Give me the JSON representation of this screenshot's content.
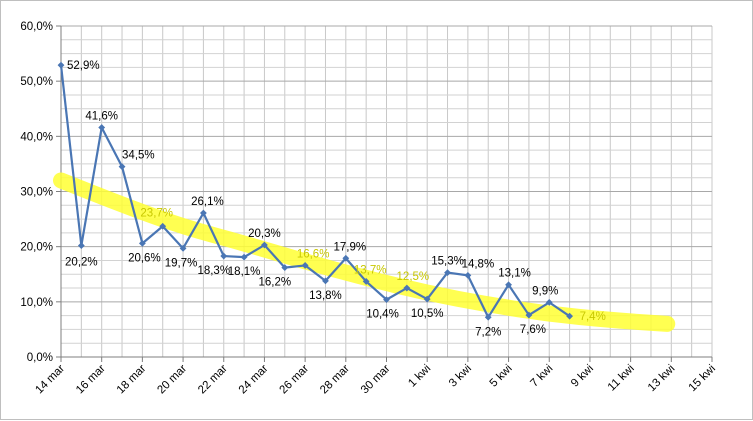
{
  "chart_data": {
    "type": "line",
    "title": "",
    "xlabel": "",
    "ylabel": "",
    "ylim": [
      0,
      60
    ],
    "y_ticks": [
      0,
      10,
      20,
      30,
      40,
      50,
      60
    ],
    "y_tick_labels": [
      "0,0%",
      "10,0%",
      "20,0%",
      "30,0%",
      "40,0%",
      "50,0%",
      "60,0%"
    ],
    "x_tick_labels": [
      "14 mar",
      "16 mar",
      "18 mar",
      "20 mar",
      "22 mar",
      "24 mar",
      "26 mar",
      "28 mar",
      "30 mar",
      "1 kwi",
      "3 kwi",
      "5 kwi",
      "7 kwi",
      "9 kwi",
      "11 kwi",
      "13 kwi",
      "15 kwi"
    ],
    "x_day_range": [
      0,
      32
    ],
    "grid": true,
    "legend": "none",
    "series": [
      {
        "color": "#4a76b4",
        "points": [
          {
            "day": 0,
            "value": 52.9,
            "label": "52,9%"
          },
          {
            "day": 1,
            "value": 20.2,
            "label": "20,2%"
          },
          {
            "day": 2,
            "value": 41.6,
            "label": "41,6%"
          },
          {
            "day": 3,
            "value": 34.5,
            "label": "34,5%"
          },
          {
            "day": 4,
            "value": 20.6,
            "label": "20,6%"
          },
          {
            "day": 5,
            "value": 23.7,
            "label": "23,7%"
          },
          {
            "day": 6,
            "value": 19.7,
            "label": "19,7%"
          },
          {
            "day": 7,
            "value": 26.1,
            "label": "26,1%"
          },
          {
            "day": 8,
            "value": 18.3,
            "label": "18,3%"
          },
          {
            "day": 9,
            "value": 18.1,
            "label": "18,1%"
          },
          {
            "day": 10,
            "value": 20.3,
            "label": "20,3%"
          },
          {
            "day": 11,
            "value": 16.2,
            "label": "16,2%"
          },
          {
            "day": 12,
            "value": 16.6,
            "label": "16,6%"
          },
          {
            "day": 13,
            "value": 13.8,
            "label": "13,8%"
          },
          {
            "day": 14,
            "value": 17.9,
            "label": "17,9%"
          },
          {
            "day": 15,
            "value": 13.7,
            "label": "13,7%"
          },
          {
            "day": 16,
            "value": 10.4,
            "label": "10,4%"
          },
          {
            "day": 17,
            "value": 12.5,
            "label": "12,5%"
          },
          {
            "day": 18,
            "value": 10.5,
            "label": "10,5%"
          },
          {
            "day": 19,
            "value": 15.3,
            "label": "15,3%"
          },
          {
            "day": 20,
            "value": 14.8,
            "label": "14,8%"
          },
          {
            "day": 21,
            "value": 7.2,
            "label": "7,2%"
          },
          {
            "day": 22,
            "value": 13.1,
            "label": "13,1%"
          },
          {
            "day": 23,
            "value": 7.6,
            "label": "7,6%"
          },
          {
            "day": 24,
            "value": 9.9,
            "label": "9,9%"
          },
          {
            "day": 25,
            "value": 7.4,
            "label": "7,4%"
          }
        ]
      }
    ],
    "trend_band": {
      "color": "#ffff33",
      "points": [
        {
          "day": 0,
          "value": 32
        },
        {
          "day": 3,
          "value": 27.6
        },
        {
          "day": 6,
          "value": 23.6
        },
        {
          "day": 9,
          "value": 20.6
        },
        {
          "day": 12,
          "value": 17.3
        },
        {
          "day": 15,
          "value": 14.3
        },
        {
          "day": 18,
          "value": 11.6
        },
        {
          "day": 21,
          "value": 9.5
        },
        {
          "day": 24,
          "value": 7.8
        },
        {
          "day": 27,
          "value": 6.7
        },
        {
          "day": 29.8,
          "value": 6.0
        }
      ]
    }
  }
}
